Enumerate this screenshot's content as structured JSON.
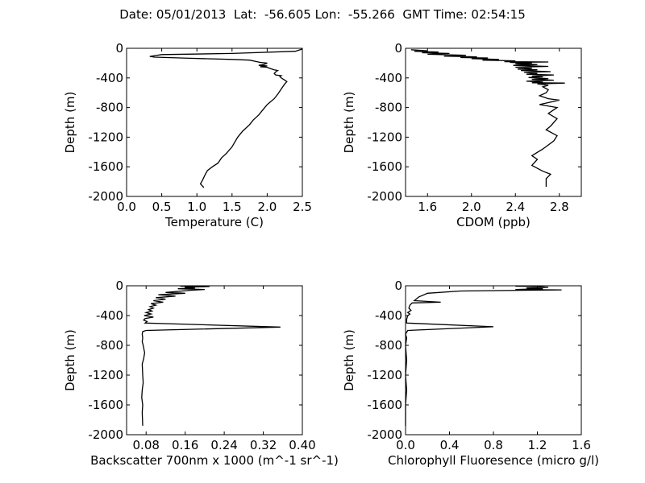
{
  "figure": {
    "title": "Date: 05/01/2013  Lat:  -56.605 Lon:  -55.266  GMT Time: 02:54:15"
  },
  "chart_data": [
    {
      "type": "line",
      "xlabel": "Temperature (C)",
      "ylabel": "Depth (m)",
      "xlim": [
        0.0,
        2.5
      ],
      "ylim": [
        -2000,
        0
      ],
      "xticks": [
        "0.0",
        "0.5",
        "1.0",
        "1.5",
        "2.0",
        "2.5"
      ],
      "yticks": [
        "0",
        "-400",
        "-800",
        "-1200",
        "-1600",
        "-2000"
      ],
      "grid": false,
      "series": [
        {
          "points": [
            [
              2.5,
              -10
            ],
            [
              2.4,
              -40
            ],
            [
              1.5,
              -70
            ],
            [
              0.5,
              -85
            ],
            [
              0.33,
              -110
            ],
            [
              0.4,
              -120
            ],
            [
              0.9,
              -135
            ],
            [
              1.5,
              -150
            ],
            [
              1.75,
              -160
            ],
            [
              1.9,
              -190
            ],
            [
              2.0,
              -200
            ],
            [
              1.95,
              -220
            ],
            [
              1.88,
              -230
            ],
            [
              1.95,
              -235
            ],
            [
              2.0,
              -238
            ],
            [
              1.93,
              -245
            ],
            [
              1.9,
              -250
            ],
            [
              2.0,
              -255
            ],
            [
              2.02,
              -265
            ],
            [
              2.1,
              -290
            ],
            [
              2.15,
              -300
            ],
            [
              2.12,
              -320
            ],
            [
              2.1,
              -340
            ],
            [
              2.12,
              -360
            ],
            [
              2.2,
              -370
            ],
            [
              2.18,
              -380
            ],
            [
              2.2,
              -400
            ],
            [
              2.25,
              -430
            ],
            [
              2.28,
              -450
            ],
            [
              2.25,
              -480
            ],
            [
              2.2,
              -550
            ],
            [
              2.15,
              -620
            ],
            [
              2.1,
              -680
            ],
            [
              2.0,
              -760
            ],
            [
              1.93,
              -840
            ],
            [
              1.88,
              -900
            ],
            [
              1.8,
              -970
            ],
            [
              1.75,
              -1030
            ],
            [
              1.65,
              -1120
            ],
            [
              1.58,
              -1200
            ],
            [
              1.5,
              -1330
            ],
            [
              1.42,
              -1420
            ],
            [
              1.35,
              -1480
            ],
            [
              1.3,
              -1550
            ],
            [
              1.22,
              -1600
            ],
            [
              1.15,
              -1650
            ],
            [
              1.12,
              -1700
            ],
            [
              1.08,
              -1780
            ],
            [
              1.05,
              -1830
            ],
            [
              1.1,
              -1880
            ]
          ]
        }
      ]
    },
    {
      "type": "line",
      "xlabel": "CDOM (ppb)",
      "ylabel": "Depth (m)",
      "xlim": [
        1.4,
        3.0
      ],
      "ylim": [
        -2000,
        0
      ],
      "xticks": [
        "1.6",
        "2.0",
        "2.4",
        "2.8"
      ],
      "yticks": [
        "0",
        "-400",
        "-800",
        "-1200",
        "-1600",
        "-2000"
      ],
      "grid": false,
      "series": [
        {
          "points": [
            [
              1.45,
              -20
            ],
            [
              1.6,
              -35
            ],
            [
              1.48,
              -40
            ],
            [
              1.7,
              -50
            ],
            [
              1.55,
              -60
            ],
            [
              1.8,
              -70
            ],
            [
              1.6,
              -80
            ],
            [
              1.95,
              -95
            ],
            [
              1.75,
              -105
            ],
            [
              2.05,
              -115
            ],
            [
              1.9,
              -125
            ],
            [
              2.15,
              -130
            ],
            [
              2.0,
              -140
            ],
            [
              2.25,
              -150
            ],
            [
              2.1,
              -160
            ],
            [
              2.4,
              -170
            ],
            [
              2.3,
              -180
            ],
            [
              2.7,
              -185
            ],
            [
              2.35,
              -190
            ],
            [
              2.55,
              -200
            ],
            [
              2.4,
              -210
            ],
            [
              2.6,
              -220
            ],
            [
              2.38,
              -230
            ],
            [
              2.7,
              -245
            ],
            [
              2.4,
              -255
            ],
            [
              2.55,
              -270
            ],
            [
              2.42,
              -280
            ],
            [
              2.6,
              -290
            ],
            [
              2.45,
              -300
            ],
            [
              2.72,
              -315
            ],
            [
              2.48,
              -325
            ],
            [
              2.6,
              -340
            ],
            [
              2.5,
              -350
            ],
            [
              2.75,
              -360
            ],
            [
              2.55,
              -375
            ],
            [
              2.65,
              -385
            ],
            [
              2.52,
              -395
            ],
            [
              2.7,
              -410
            ],
            [
              2.55,
              -420
            ],
            [
              2.75,
              -430
            ],
            [
              2.5,
              -445
            ],
            [
              2.65,
              -455
            ],
            [
              2.55,
              -465
            ],
            [
              2.85,
              -470
            ],
            [
              2.6,
              -480
            ],
            [
              2.7,
              -500
            ],
            [
              2.65,
              -520
            ],
            [
              2.7,
              -560
            ],
            [
              2.68,
              -600
            ],
            [
              2.62,
              -640
            ],
            [
              2.7,
              -680
            ],
            [
              2.8,
              -700
            ],
            [
              2.62,
              -760
            ],
            [
              2.78,
              -800
            ],
            [
              2.7,
              -880
            ],
            [
              2.78,
              -950
            ],
            [
              2.72,
              -1050
            ],
            [
              2.68,
              -1100
            ],
            [
              2.78,
              -1180
            ],
            [
              2.75,
              -1250
            ],
            [
              2.65,
              -1360
            ],
            [
              2.55,
              -1450
            ],
            [
              2.6,
              -1500
            ],
            [
              2.55,
              -1580
            ],
            [
              2.65,
              -1660
            ],
            [
              2.72,
              -1700
            ],
            [
              2.68,
              -1760
            ],
            [
              2.68,
              -1870
            ]
          ]
        }
      ]
    },
    {
      "type": "line",
      "xlabel": "Backscatter 700nm x 1000 (m^-1 sr^-1)",
      "ylabel": "Depth (m)",
      "xlim": [
        0.04,
        0.4
      ],
      "ylim": [
        -2000,
        0
      ],
      "xticks": [
        "0.08",
        "0.16",
        "0.24",
        "0.32",
        "0.40"
      ],
      "yticks": [
        "0",
        "-400",
        "-800",
        "-1200",
        "-1600",
        "-2000"
      ],
      "grid": false,
      "series": [
        {
          "points": [
            [
              0.15,
              -5
            ],
            [
              0.21,
              -10
            ],
            [
              0.16,
              -20
            ],
            [
              0.18,
              -30
            ],
            [
              0.145,
              -40
            ],
            [
              0.2,
              -50
            ],
            [
              0.17,
              -60
            ],
            [
              0.12,
              -90
            ],
            [
              0.16,
              -100
            ],
            [
              0.105,
              -120
            ],
            [
              0.14,
              -140
            ],
            [
              0.1,
              -160
            ],
            [
              0.12,
              -180
            ],
            [
              0.095,
              -200
            ],
            [
              0.115,
              -220
            ],
            [
              0.09,
              -240
            ],
            [
              0.1,
              -260
            ],
            [
              0.088,
              -280
            ],
            [
              0.095,
              -300
            ],
            [
              0.085,
              -320
            ],
            [
              0.092,
              -340
            ],
            [
              0.08,
              -360
            ],
            [
              0.09,
              -380
            ],
            [
              0.076,
              -400
            ],
            [
              0.095,
              -420
            ],
            [
              0.078,
              -440
            ],
            [
              0.075,
              -460
            ],
            [
              0.082,
              -480
            ],
            [
              0.078,
              -500
            ],
            [
              0.355,
              -555
            ],
            [
              0.08,
              -600
            ],
            [
              0.073,
              -615
            ],
            [
              0.072,
              -650
            ],
            [
              0.073,
              -700
            ],
            [
              0.072,
              -750
            ],
            [
              0.074,
              -800
            ],
            [
              0.077,
              -900
            ],
            [
              0.075,
              -980
            ],
            [
              0.072,
              -1050
            ],
            [
              0.073,
              -1200
            ],
            [
              0.074,
              -1300
            ],
            [
              0.072,
              -1400
            ],
            [
              0.071,
              -1500
            ],
            [
              0.073,
              -1600
            ],
            [
              0.072,
              -1700
            ],
            [
              0.073,
              -1880
            ]
          ]
        }
      ]
    },
    {
      "type": "line",
      "xlabel": "Chlorophyll Fluoresence (micro g/l)",
      "ylabel": "Depth (m)",
      "xlim": [
        0.0,
        1.6
      ],
      "ylim": [
        -2000,
        0
      ],
      "xticks": [
        "0.0",
        "0.4",
        "0.8",
        "1.2",
        "1.6"
      ],
      "yticks": [
        "0",
        "-400",
        "-800",
        "-1200",
        "-1600",
        "-2000"
      ],
      "grid": false,
      "series": [
        {
          "points": [
            [
              1.0,
              -5
            ],
            [
              1.2,
              -10
            ],
            [
              1.3,
              -20
            ],
            [
              1.1,
              -30
            ],
            [
              1.25,
              -40
            ],
            [
              1.0,
              -50
            ],
            [
              1.42,
              -55
            ],
            [
              0.5,
              -70
            ],
            [
              0.2,
              -100
            ],
            [
              0.12,
              -150
            ],
            [
              0.08,
              -200
            ],
            [
              0.32,
              -220
            ],
            [
              0.06,
              -230
            ],
            [
              0.04,
              -260
            ],
            [
              0.03,
              -300
            ],
            [
              0.05,
              -330
            ],
            [
              0.02,
              -360
            ],
            [
              0.04,
              -380
            ],
            [
              0.02,
              -400
            ],
            [
              0.01,
              -450
            ],
            [
              0.01,
              -500
            ],
            [
              0.8,
              -550
            ],
            [
              0.02,
              -600
            ],
            [
              0.0,
              -650
            ],
            [
              0.01,
              -700
            ],
            [
              0.0,
              -800
            ],
            [
              0.01,
              -1000
            ],
            [
              0.0,
              -1200
            ],
            [
              0.01,
              -1400
            ],
            [
              0.0,
              -1600
            ],
            [
              0.0,
              -1880
            ]
          ]
        }
      ]
    }
  ]
}
